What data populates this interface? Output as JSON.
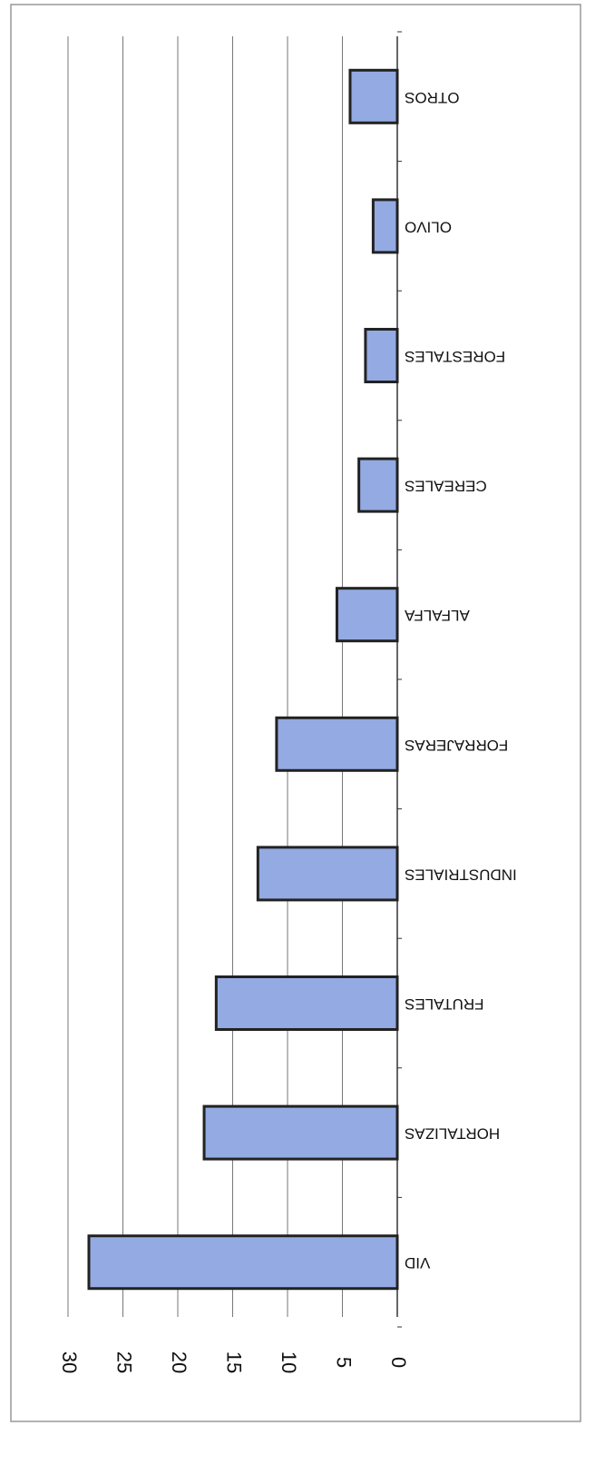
{
  "chart_data": {
    "type": "bar",
    "categories": [
      "VID",
      "HORTALIZAS",
      "FRUTALES",
      "INDUSTRIALES",
      "FORRAJERAS",
      "ALFALFA",
      "CEREALES",
      "FORESTALES",
      "OLIVO",
      "OTROS"
    ],
    "values": [
      28.1,
      17.6,
      16.5,
      12.7,
      11,
      5.5,
      3.5,
      2.9,
      2.2,
      4.3
    ],
    "color": "#93aae2",
    "ylim": [
      0,
      30
    ],
    "yticks": [
      0,
      5,
      10,
      15,
      20,
      25,
      30
    ],
    "grid": true
  }
}
